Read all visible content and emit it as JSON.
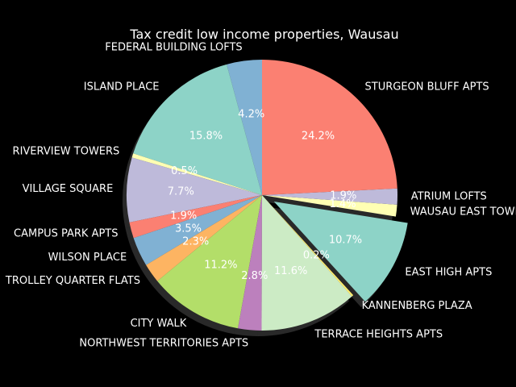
{
  "chart_data": {
    "type": "pie",
    "title": "Tax credit low income properties, Wausau",
    "start_angle_deg": 90,
    "direction": "counterclockwise",
    "shadow": true,
    "background": "#000000",
    "slices": [
      {
        "label": "FEDERAL BUILDING LOFTS",
        "pct_label": "4.2%",
        "value": 4.2,
        "color": "#80b1d3"
      },
      {
        "label": "ISLAND PLACE",
        "pct_label": "15.8%",
        "value": 15.8,
        "color": "#8dd3c7"
      },
      {
        "label": "RIVERVIEW TOWERS",
        "pct_label": "0.5%",
        "value": 0.5,
        "color": "#ffffb3"
      },
      {
        "label": "VILLAGE SQUARE",
        "pct_label": "7.7%",
        "value": 7.7,
        "color": "#bebada"
      },
      {
        "label": "CAMPUS PARK APTS",
        "pct_label": "1.9%",
        "value": 1.9,
        "color": "#fb8072"
      },
      {
        "label": "WILSON PLACE",
        "pct_label": "3.5%",
        "value": 3.5,
        "color": "#80b1d3"
      },
      {
        "label": "TROLLEY QUARTER FLATS",
        "pct_label": "2.3%",
        "value": 2.3,
        "color": "#fdb462"
      },
      {
        "label": "CITY WALK",
        "pct_label": "11.2%",
        "value": 11.2,
        "color": "#b3de69"
      },
      {
        "label": "NORTHWEST TERRITORIES APTS",
        "pct_label": "2.8%",
        "value": 2.8,
        "color": "#bc80bd"
      },
      {
        "label": "TERRACE HEIGHTS APTS",
        "pct_label": "11.6%",
        "value": 11.6,
        "color": "#ccebc5"
      },
      {
        "label": "KANNENBERG PLAZA",
        "pct_label": "0.2%",
        "value": 0.2,
        "color": "#ffed6f"
      },
      {
        "label": "EAST HIGH APTS",
        "pct_label": "10.7%",
        "value": 10.7,
        "color": "#8dd3c7",
        "exploded": true
      },
      {
        "label": "WAUSAU EAST TOWNHOMES",
        "pct_label": "1.4%",
        "value": 1.4,
        "color": "#ffffb3"
      },
      {
        "label": "ATRIUM LOFTS",
        "pct_label": "1.9%",
        "value": 1.9,
        "color": "#bebada"
      },
      {
        "label": "STURGEON BLUFF APTS",
        "pct_label": "24.2%",
        "value": 24.2,
        "color": "#fb8072"
      }
    ]
  }
}
